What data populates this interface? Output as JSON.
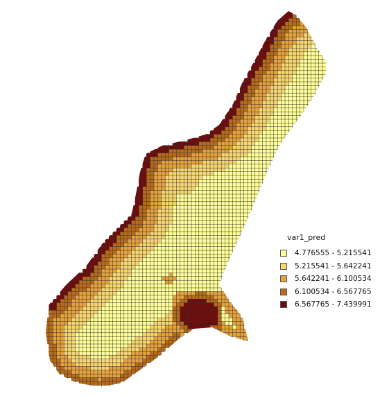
{
  "map": {
    "legend_title": "var1_pred",
    "classes": [
      {
        "label": "4.776555 - 5.215541",
        "color": "#FFFF99"
      },
      {
        "label": "5.215541 - 5.642241",
        "color": "#F8D771"
      },
      {
        "label": "5.642241 - 6.100534",
        "color": "#E6A33D"
      },
      {
        "label": "6.100534 - 6.567765",
        "color": "#B86B1B"
      },
      {
        "label": "6.567765 - 7.439991",
        "color": "#720A0A"
      }
    ],
    "grid_color": "#2a2a2a"
  }
}
